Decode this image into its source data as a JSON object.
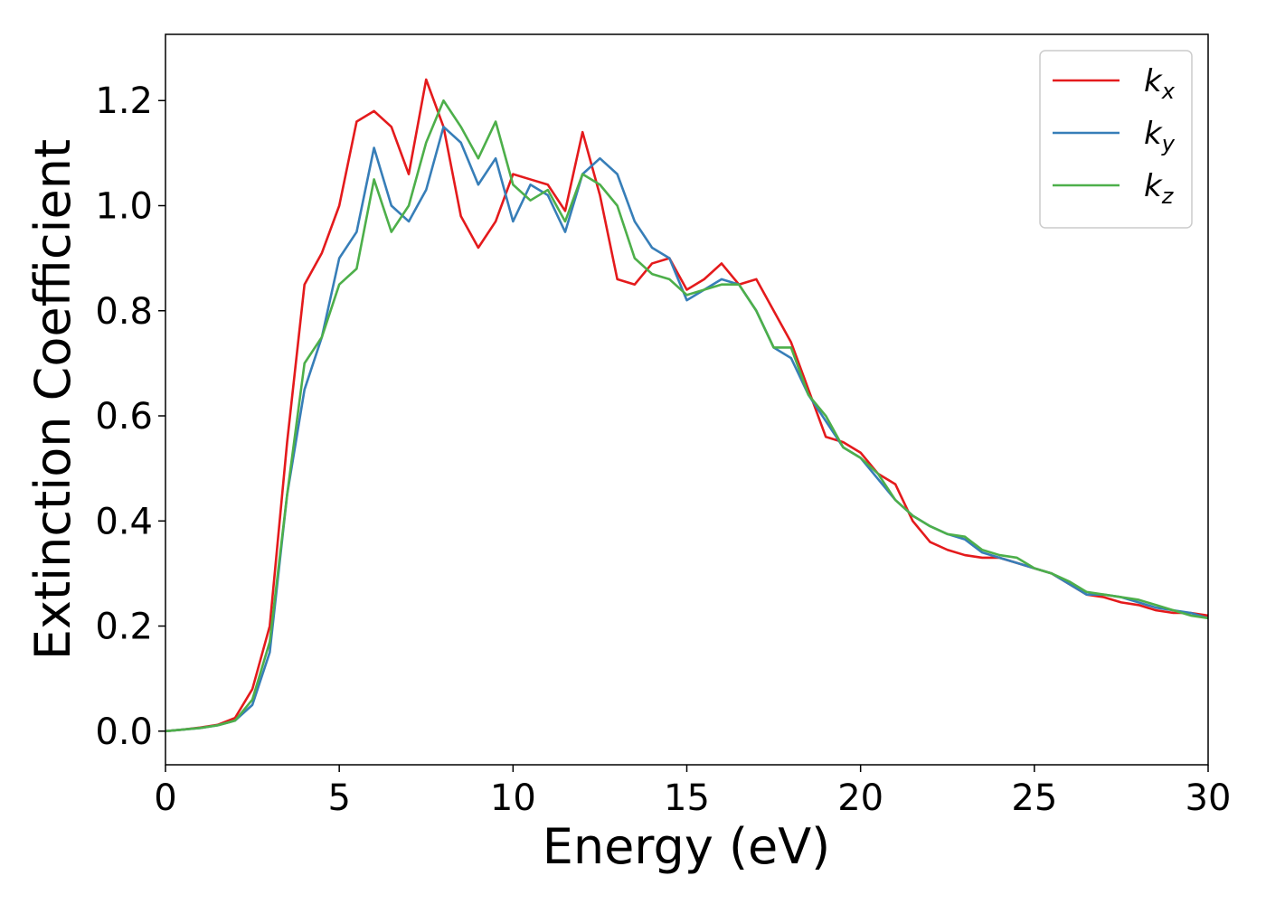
{
  "chart_data": {
    "type": "line",
    "xlabel": "Energy (eV)",
    "ylabel": "Extinction Coefficient",
    "x": [
      0,
      0.5,
      1,
      1.5,
      2,
      2.5,
      3,
      3.5,
      4,
      4.5,
      5,
      5.5,
      6,
      6.5,
      7,
      7.5,
      8,
      8.5,
      9,
      9.5,
      10,
      10.5,
      11,
      11.5,
      12,
      12.5,
      13,
      13.5,
      14,
      14.5,
      15,
      15.5,
      16,
      16.5,
      17,
      17.5,
      18,
      18.5,
      19,
      19.5,
      20,
      20.5,
      21,
      21.5,
      22,
      22.5,
      23,
      23.5,
      24,
      24.5,
      25,
      25.5,
      26,
      26.5,
      27,
      27.5,
      28,
      28.5,
      29,
      29.5,
      30
    ],
    "series": [
      {
        "name": "k_x",
        "color": "#e41a1c",
        "values": [
          0,
          0.003,
          0.007,
          0.012,
          0.025,
          0.08,
          0.2,
          0.55,
          0.85,
          0.91,
          1.0,
          1.16,
          1.18,
          1.15,
          1.06,
          1.24,
          1.15,
          0.98,
          0.92,
          0.97,
          1.06,
          1.05,
          1.04,
          0.99,
          1.14,
          1.02,
          0.86,
          0.85,
          0.89,
          0.9,
          0.84,
          0.86,
          0.89,
          0.85,
          0.86,
          0.8,
          0.74,
          0.65,
          0.56,
          0.55,
          0.53,
          0.49,
          0.47,
          0.4,
          0.36,
          0.345,
          0.335,
          0.33,
          0.33,
          0.32,
          0.31,
          0.3,
          0.28,
          0.26,
          0.255,
          0.245,
          0.24,
          0.23,
          0.225,
          0.225,
          0.22
        ]
      },
      {
        "name": "k_y",
        "color": "#377eb8",
        "values": [
          0,
          0.003,
          0.006,
          0.011,
          0.02,
          0.05,
          0.15,
          0.45,
          0.65,
          0.75,
          0.9,
          0.95,
          1.11,
          1.0,
          0.97,
          1.03,
          1.15,
          1.12,
          1.04,
          1.09,
          0.97,
          1.04,
          1.02,
          0.95,
          1.06,
          1.09,
          1.06,
          0.97,
          0.92,
          0.9,
          0.82,
          0.84,
          0.86,
          0.85,
          0.8,
          0.73,
          0.71,
          0.64,
          0.59,
          0.54,
          0.52,
          0.48,
          0.44,
          0.41,
          0.39,
          0.375,
          0.365,
          0.34,
          0.33,
          0.32,
          0.31,
          0.3,
          0.28,
          0.26,
          0.26,
          0.255,
          0.245,
          0.235,
          0.23,
          0.225,
          0.215
        ]
      },
      {
        "name": "k_z",
        "color": "#4daf4a",
        "values": [
          0,
          0.003,
          0.006,
          0.011,
          0.02,
          0.06,
          0.17,
          0.45,
          0.7,
          0.75,
          0.85,
          0.88,
          1.05,
          0.95,
          1.0,
          1.12,
          1.2,
          1.15,
          1.09,
          1.16,
          1.04,
          1.01,
          1.03,
          0.97,
          1.06,
          1.04,
          1.0,
          0.9,
          0.87,
          0.86,
          0.83,
          0.84,
          0.85,
          0.85,
          0.8,
          0.73,
          0.73,
          0.64,
          0.6,
          0.54,
          0.52,
          0.49,
          0.44,
          0.41,
          0.39,
          0.375,
          0.37,
          0.345,
          0.335,
          0.33,
          0.31,
          0.3,
          0.285,
          0.265,
          0.26,
          0.255,
          0.25,
          0.24,
          0.23,
          0.22,
          0.215
        ]
      }
    ],
    "xlim": [
      0,
      30
    ],
    "xticks": [
      0,
      5,
      10,
      15,
      20,
      25,
      30
    ],
    "ylim": [
      -0.064,
      1.326
    ],
    "yticks": [
      {
        "value": 0,
        "label": "0.0"
      },
      0.2,
      0.4,
      0.6,
      0.8,
      {
        "value": 1,
        "label": "1.0"
      },
      1.2
    ],
    "grid": false,
    "legend": "upper right"
  }
}
